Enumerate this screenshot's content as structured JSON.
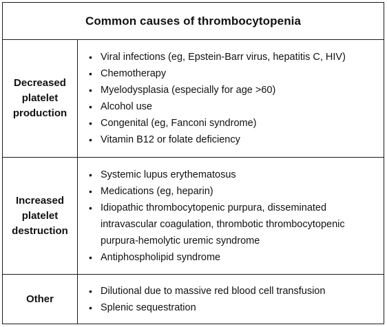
{
  "title": "Common causes of thrombocytopenia",
  "rows": [
    {
      "label": "Decreased\nplatelet\nproduction",
      "items": [
        "Viral infections (eg, Epstein-Barr virus, hepatitis C, HIV)",
        "Chemotherapy",
        "Myelodysplasia (especially for age >60)",
        "Alcohol use",
        "Congenital (eg, Fanconi syndrome)",
        "Vitamin B12 or folate deficiency"
      ]
    },
    {
      "label": "Increased\nplatelet\ndestruction",
      "items": [
        "Systemic lupus erythematosus",
        "Medications (eg, heparin)",
        "Idiopathic thrombocytopenic purpura, disseminated intravascular coagulation, thrombotic thrombocytopenic purpura-hemolytic uremic syndrome",
        "Antiphospholipid syndrome"
      ]
    },
    {
      "label": "Other",
      "items": [
        "Dilutional due to massive red blood cell transfusion",
        "Splenic sequestration"
      ]
    }
  ],
  "bullet": "•"
}
